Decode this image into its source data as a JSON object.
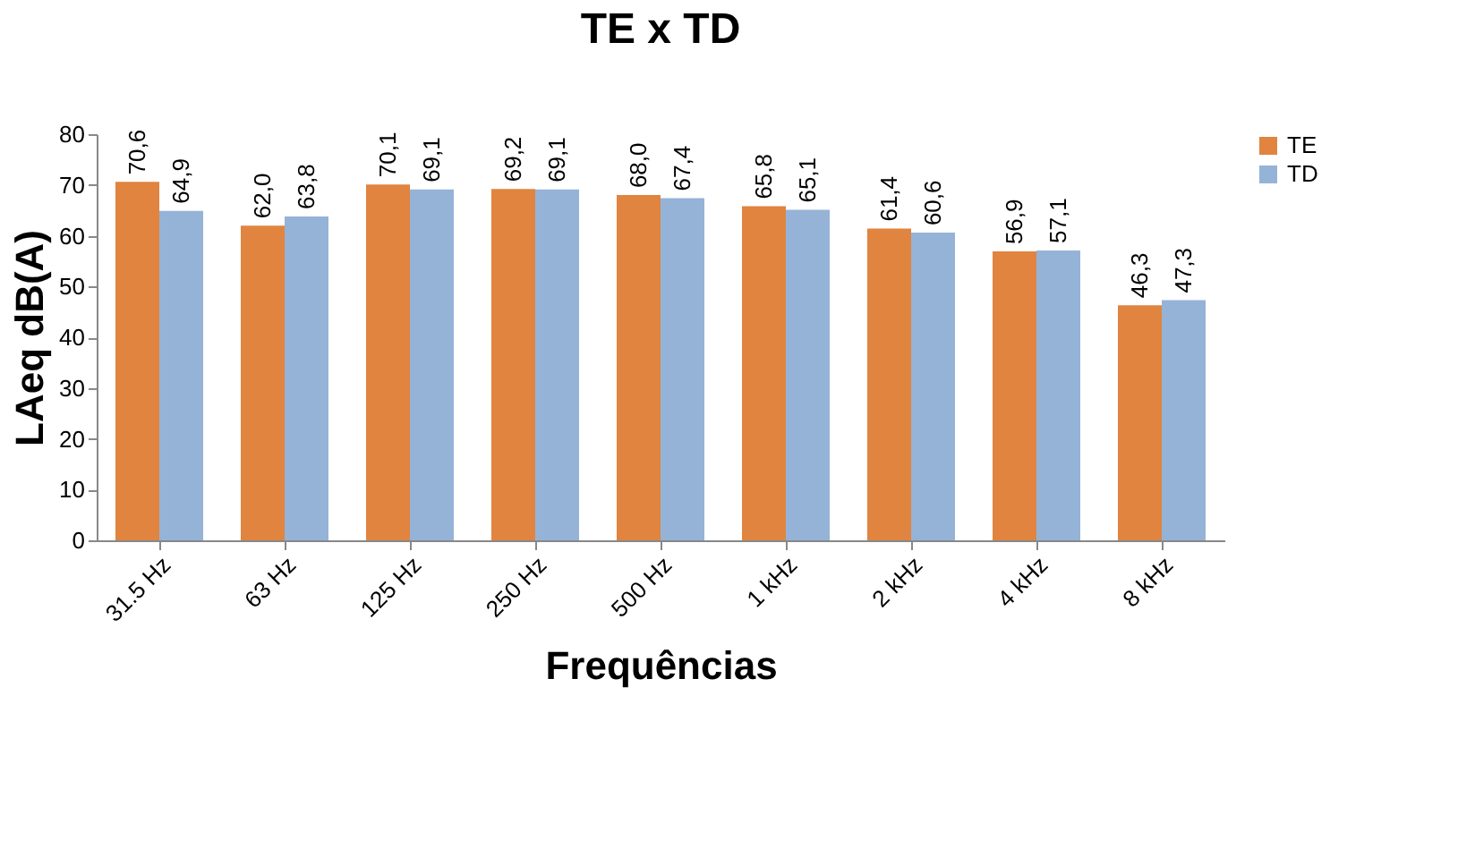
{
  "chart_data": {
    "type": "bar",
    "title": "TE x TD",
    "xlabel": "Frequências",
    "ylabel": "LAeq dB(A)",
    "categories": [
      "31.5 Hz",
      "63 Hz",
      "125 Hz",
      "250 Hz",
      "500 Hz",
      "1 kHz",
      "2 kHz",
      "4 kHz",
      "8 kHz"
    ],
    "series": [
      {
        "name": "TE",
        "color": "#e0843f",
        "values": [
          70.6,
          62.0,
          70.1,
          69.2,
          68.0,
          65.8,
          61.4,
          56.9,
          46.3
        ],
        "value_labels": [
          "70,6",
          "62,0",
          "70,1",
          "69,2",
          "68,0",
          "65,8",
          "61,4",
          "56,9",
          "46,3"
        ]
      },
      {
        "name": "TD",
        "color": "#95b3d7",
        "values": [
          64.9,
          63.8,
          69.1,
          69.1,
          67.4,
          65.1,
          60.6,
          57.1,
          47.3
        ],
        "value_labels": [
          "64,9",
          "63,8",
          "69,1",
          "69,1",
          "67,4",
          "65,1",
          "60,6",
          "57,1",
          "47,3"
        ]
      }
    ],
    "ylim": [
      0,
      80
    ],
    "yticks": [
      0,
      10,
      20,
      30,
      40,
      50,
      60,
      70,
      80
    ],
    "grid": false,
    "legend": "right"
  }
}
